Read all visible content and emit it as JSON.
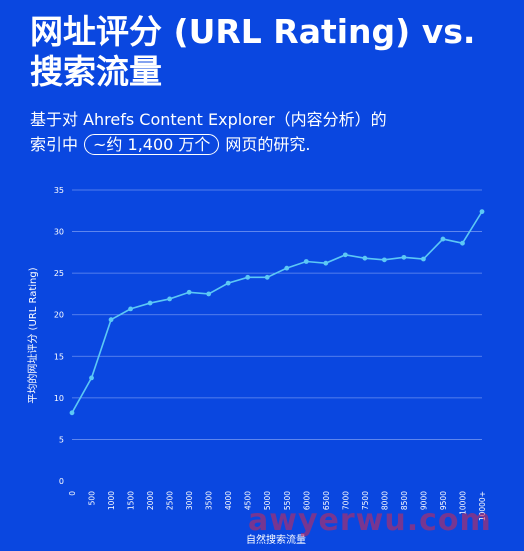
{
  "header": {
    "title_line1": "网址评分 (URL Rating) vs.",
    "title_line2": "搜索流量",
    "subtitle_part1": "基于对 Ahrefs Content Explorer（内容分析）的",
    "subtitle_part2": "索引中",
    "subtitle_highlight": "~约 1,400 万个",
    "subtitle_part3": "网页的研究."
  },
  "watermark": "awyerwu.com",
  "colors": {
    "background": "#0a47e0",
    "line": "#5cc8f5",
    "grid": "#6a8ff0"
  },
  "chart_data": {
    "type": "line",
    "xlabel": "自然搜索流量",
    "ylabel": "平均的网址评分 (URL Rating)",
    "ylim": [
      0,
      35
    ],
    "yticks": [
      "0",
      "5",
      "10",
      "15",
      "20",
      "25",
      "30",
      "35"
    ],
    "categories": [
      "0",
      "500",
      "1000",
      "1500",
      "2000",
      "2500",
      "3000",
      "3500",
      "4000",
      "4500",
      "5000",
      "5500",
      "6000",
      "6500",
      "7000",
      "7500",
      "8000",
      "8500",
      "9000",
      "9500",
      "10000",
      "10000+"
    ],
    "values": [
      8.2,
      12.4,
      19.4,
      20.7,
      21.4,
      21.9,
      22.7,
      22.5,
      23.8,
      24.5,
      24.5,
      25.6,
      26.4,
      26.2,
      27.2,
      26.8,
      26.6,
      26.9,
      26.7,
      29.1,
      28.6,
      32.4
    ],
    "grid": true,
    "legend": "none"
  }
}
